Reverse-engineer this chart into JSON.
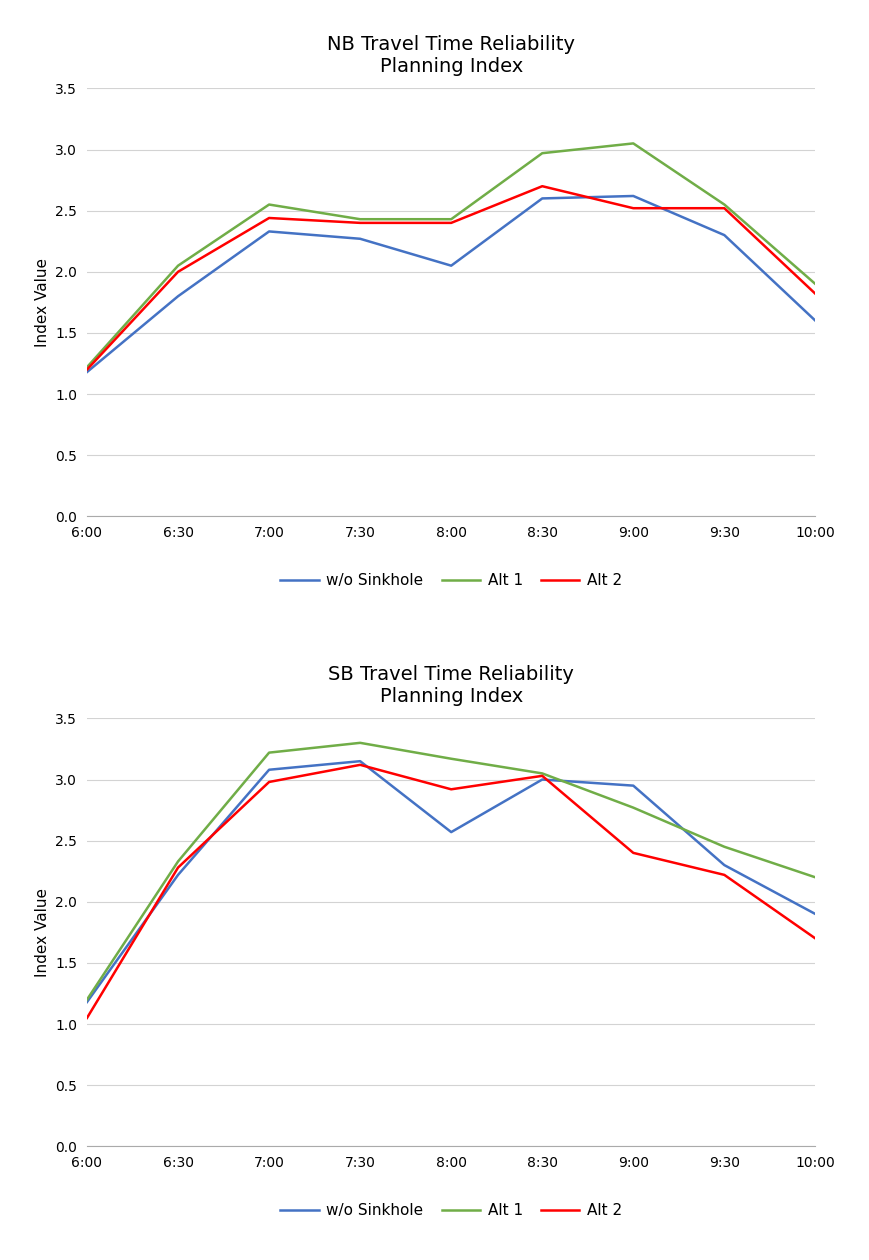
{
  "x_labels": [
    "6:00",
    "6:30",
    "7:00",
    "7:30",
    "8:00",
    "8:30",
    "9:00",
    "9:30",
    "10:00"
  ],
  "nb": {
    "title": "NB Travel Time Reliability\nPlanning Index",
    "wo_sinkhole": [
      1.18,
      1.8,
      2.33,
      2.27,
      2.05,
      2.6,
      2.62,
      2.3,
      1.6
    ],
    "alt1": [
      1.22,
      2.05,
      2.55,
      2.43,
      2.43,
      2.97,
      3.05,
      2.55,
      1.9
    ],
    "alt2": [
      1.2,
      2.0,
      2.44,
      2.4,
      2.4,
      2.7,
      2.52,
      2.52,
      1.82
    ]
  },
  "sb": {
    "title": "SB Travel Time Reliability\nPlanning Index",
    "wo_sinkhole": [
      1.18,
      2.22,
      3.08,
      3.15,
      2.57,
      3.0,
      2.95,
      2.3,
      1.9
    ],
    "alt1": [
      1.2,
      2.33,
      3.22,
      3.3,
      3.17,
      3.05,
      2.77,
      2.45,
      2.2
    ],
    "alt2": [
      1.05,
      2.28,
      2.98,
      3.12,
      2.92,
      3.03,
      2.4,
      2.22,
      1.7
    ]
  },
  "colors": {
    "wo_sinkhole": "#4472C4",
    "alt1": "#70AD47",
    "alt2": "#FF0000"
  },
  "ylabel": "Index Value",
  "ylim": [
    0,
    3.5
  ],
  "yticks": [
    0.0,
    0.5,
    1.0,
    1.5,
    2.0,
    2.5,
    3.0,
    3.5
  ],
  "legend_labels": [
    "w/o Sinkhole",
    "Alt 1",
    "Alt 2"
  ],
  "background_color": "#ffffff",
  "grid_color": "#d3d3d3"
}
